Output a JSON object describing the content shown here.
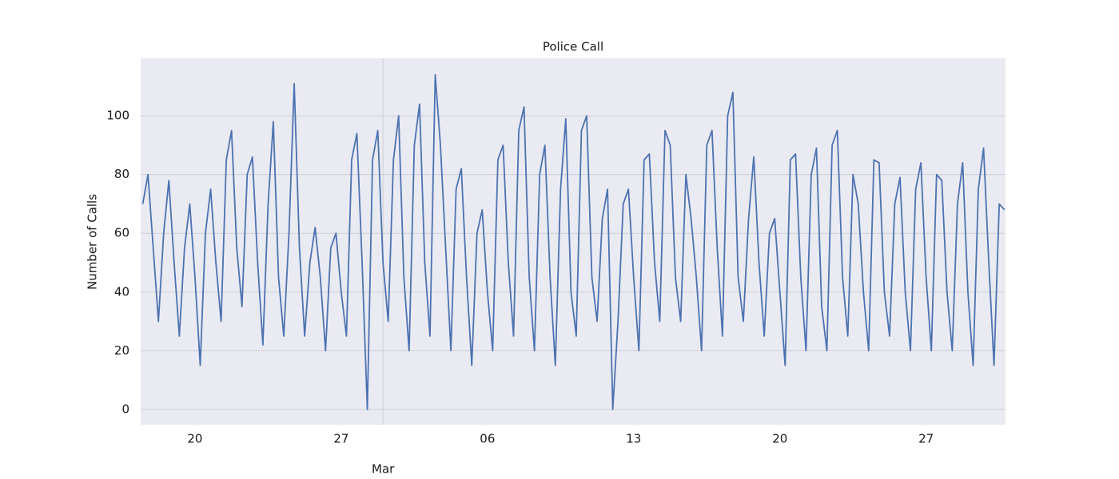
{
  "chart_data": {
    "type": "line",
    "title": "Police Call",
    "y_label": "Number of Calls",
    "x": [
      -2.5,
      -2.25,
      -2,
      -1.75,
      -1.5,
      -1.25,
      -1,
      -0.75,
      -0.5,
      -0.25,
      0,
      0.25,
      0.5,
      0.75,
      1,
      1.25,
      1.5,
      1.75,
      2,
      2.25,
      2.5,
      2.75,
      3,
      3.25,
      3.5,
      3.75,
      4,
      4.25,
      4.5,
      4.75,
      5,
      5.25,
      5.5,
      5.75,
      6,
      6.25,
      6.5,
      6.75,
      7,
      7.25,
      7.5,
      7.75,
      8,
      8.25,
      8.5,
      8.75,
      9,
      9.25,
      9.5,
      9.75,
      10,
      10.25,
      10.5,
      10.75,
      11,
      11.25,
      11.5,
      11.75,
      12,
      12.25,
      12.5,
      12.75,
      13,
      13.25,
      13.5,
      13.75,
      14,
      14.25,
      14.5,
      14.75,
      15,
      15.25,
      15.5,
      15.75,
      16,
      16.25,
      16.5,
      16.75,
      17,
      17.25,
      17.5,
      17.75,
      18,
      18.25,
      18.5,
      18.75,
      19,
      19.25,
      19.5,
      19.75,
      20,
      20.25,
      20.5,
      20.75,
      21,
      21.25,
      21.5,
      21.75,
      22,
      22.25,
      22.5,
      22.75,
      23,
      23.25,
      23.5,
      23.75,
      24,
      24.25,
      24.5,
      24.75,
      25,
      25.25,
      25.5,
      25.75,
      26,
      26.25,
      26.5,
      26.75,
      27,
      27.25,
      27.5,
      27.75,
      28,
      28.25,
      28.5,
      28.75,
      29,
      29.25,
      29.5,
      29.75,
      30,
      30.25,
      30.5,
      30.75,
      31,
      31.25,
      31.5,
      31.75,
      32,
      32.25,
      32.5,
      32.75,
      33,
      33.25,
      33.5,
      33.75,
      34,
      34.25,
      34.5,
      34.75,
      35,
      35.25,
      35.5,
      35.75,
      36,
      36.25,
      36.5,
      36.75,
      37,
      37.25,
      37.5,
      37.75,
      38,
      38.25,
      38.5,
      38.75
    ],
    "series": [
      {
        "color": "#4c72b0",
        "values": [
          70,
          80,
          55,
          30,
          60,
          78,
          50,
          25,
          55,
          70,
          45,
          15,
          60,
          75,
          50,
          30,
          85,
          95,
          55,
          35,
          80,
          86,
          50,
          22,
          70,
          98,
          45,
          25,
          60,
          111,
          55,
          25,
          50,
          62,
          45,
          20,
          55,
          60,
          40,
          25,
          85,
          94,
          50,
          0,
          85,
          95,
          50,
          30,
          85,
          100,
          45,
          20,
          90,
          104,
          50,
          25,
          114,
          90,
          55,
          20,
          75,
          82,
          45,
          15,
          60,
          68,
          40,
          20,
          85,
          90,
          50,
          25,
          95,
          103,
          45,
          20,
          80,
          90,
          45,
          15,
          75,
          99,
          40,
          25,
          95,
          100,
          45,
          30,
          65,
          75,
          0,
          30,
          70,
          75,
          45,
          20,
          85,
          87,
          50,
          30,
          95,
          90,
          45,
          30,
          80,
          65,
          45,
          20,
          90,
          95,
          55,
          25,
          100,
          108,
          45,
          30,
          65,
          86,
          50,
          25,
          60,
          65,
          40,
          15,
          85,
          87,
          45,
          20,
          80,
          89,
          35,
          20,
          90,
          95,
          45,
          25,
          80,
          70,
          40,
          20,
          85,
          84,
          40,
          25,
          70,
          79,
          40,
          20,
          75,
          84,
          45,
          20,
          80,
          78,
          40,
          20,
          70,
          84,
          40,
          15,
          75,
          89,
          50,
          15,
          70,
          68
        ]
      }
    ],
    "xlim": [
      -2.6,
      38.8
    ],
    "xticks": [
      {
        "value": 0,
        "label": "20"
      },
      {
        "value": 7,
        "label": "27"
      },
      {
        "value": 14,
        "label": "06"
      },
      {
        "value": 21,
        "label": "13"
      },
      {
        "value": 28,
        "label": "20"
      },
      {
        "value": 35,
        "label": "27"
      }
    ],
    "x_major_ticks": [
      {
        "value": 9,
        "label": "Mar"
      }
    ],
    "ylim": [
      -5.2,
      119.6
    ],
    "yticks": [
      0,
      20,
      40,
      60,
      80,
      100
    ],
    "grid": true
  }
}
